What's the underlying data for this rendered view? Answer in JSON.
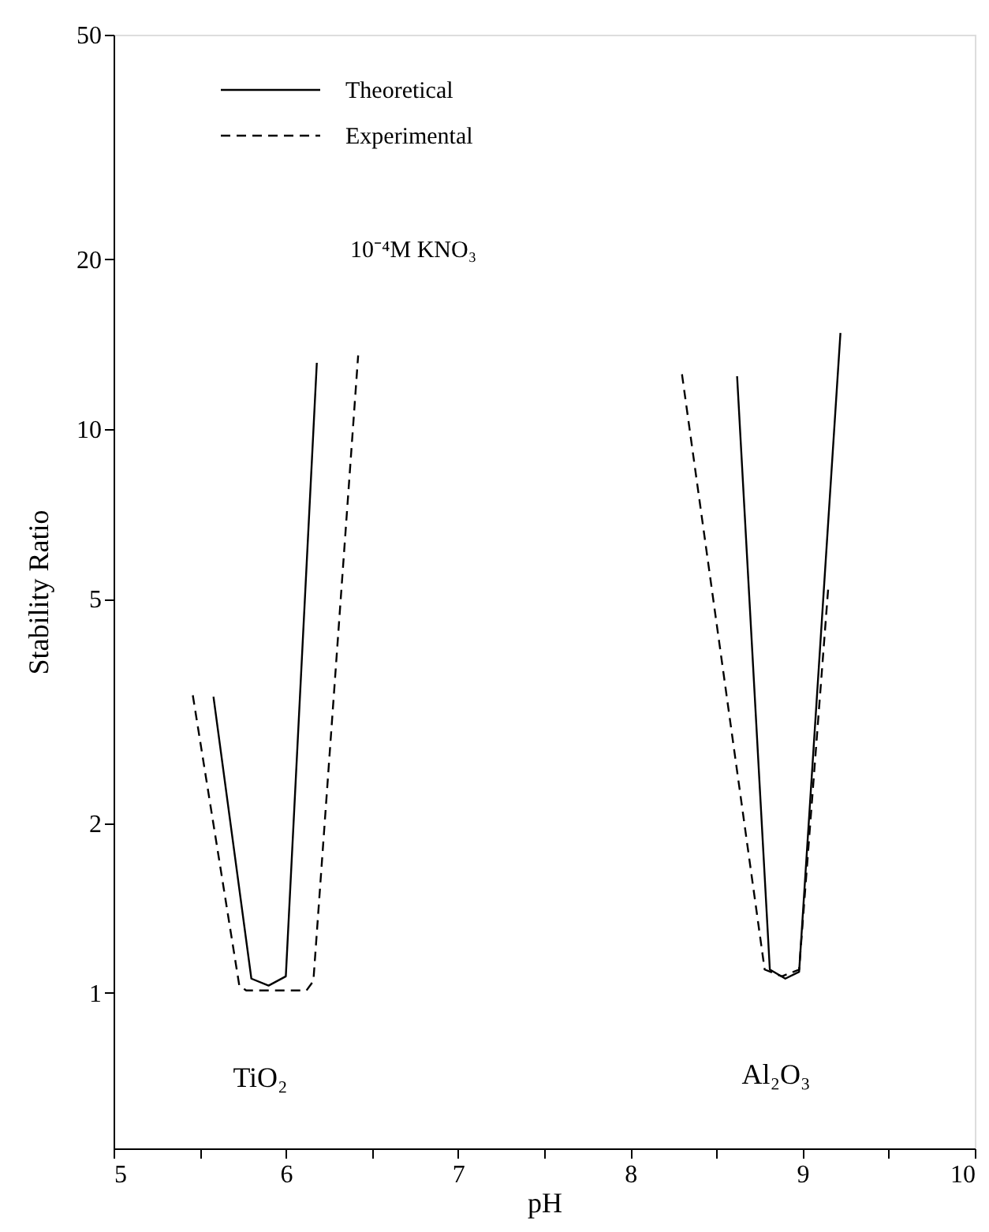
{
  "chart_data": {
    "type": "line",
    "xlabel": "pH",
    "ylabel": "Stability Ratio",
    "xlim": [
      5,
      10
    ],
    "xticks": [
      5,
      {
        "value": 5.5,
        "label": null
      },
      6,
      {
        "value": 6.5,
        "label": null
      },
      7,
      {
        "value": 7.5,
        "label": null
      },
      8,
      {
        "value": 8.5,
        "label": null
      },
      9,
      {
        "value": 9.5,
        "label": null
      },
      10
    ],
    "ylim": [
      0.53,
      50
    ],
    "yticks": [
      1,
      2,
      5,
      10,
      20,
      50
    ],
    "log": "y",
    "grid": false,
    "legend": "top left",
    "marker": "none",
    "series": [
      {
        "name": "Theoretical",
        "color": "#000000",
        "line_style": "solid",
        "x": [
          5.58,
          5.8,
          5.9,
          6.0,
          6.18
        ],
        "values": [
          3.35,
          1.06,
          1.03,
          1.07,
          13.1
        ]
      },
      {
        "name": "Experimental",
        "color": "#000000",
        "line_style": "dashed",
        "x": [
          5.46,
          5.73,
          5.77,
          6.12,
          6.16,
          6.42
        ],
        "values": [
          3.37,
          1.03,
          1.01,
          1.01,
          1.05,
          13.5
        ]
      },
      {
        "color": "#000000",
        "line_style": "solid",
        "x": [
          8.62,
          8.81,
          8.9,
          8.98,
          9.22
        ],
        "values": [
          12.4,
          1.1,
          1.06,
          1.09,
          14.8
        ]
      },
      {
        "color": "#000000",
        "line_style": "dashed",
        "x": [
          8.3,
          8.78,
          8.88,
          8.98,
          9.15
        ],
        "values": [
          12.5,
          1.1,
          1.07,
          1.1,
          5.27
        ]
      }
    ],
    "annotations": [
      "10⁻⁴M KNO₃",
      "TiO₂",
      "Al₂O₃"
    ]
  }
}
